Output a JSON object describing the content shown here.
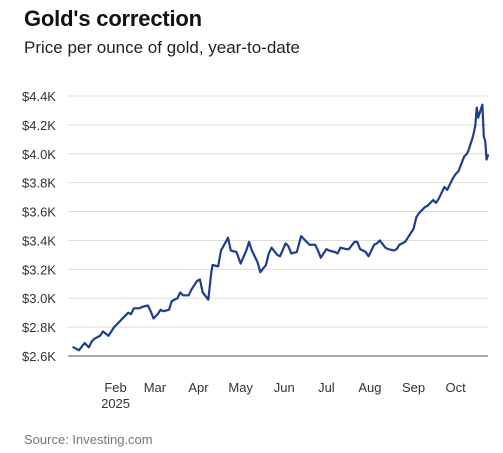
{
  "chart_data": {
    "type": "line",
    "title": "Gold's correction",
    "subtitle": "Price per ounce of gold, year-to-date",
    "source": "Source: Investing.com",
    "xlabel": "",
    "ylabel": "",
    "ylim": [
      2600,
      4400
    ],
    "yticks": [
      {
        "value": 2600,
        "label": "$2.6K"
      },
      {
        "value": 2800,
        "label": "$2.8K"
      },
      {
        "value": 3000,
        "label": "$3.0K"
      },
      {
        "value": 3200,
        "label": "$3.2K"
      },
      {
        "value": 3400,
        "label": "$3.4K"
      },
      {
        "value": 3600,
        "label": "$3.6K"
      },
      {
        "value": 3800,
        "label": "$3.8K"
      },
      {
        "value": 4000,
        "label": "$4.0K"
      },
      {
        "value": 4200,
        "label": "$4.2K"
      },
      {
        "value": 4400,
        "label": "$4.4K"
      }
    ],
    "xlim": [
      "2025-01-01",
      "2025-10-24"
    ],
    "xticks": [
      {
        "date": "2025-02-01",
        "label": "Feb",
        "sublabel": "2025"
      },
      {
        "date": "2025-03-01",
        "label": "Mar",
        "sublabel": ""
      },
      {
        "date": "2025-04-01",
        "label": "Apr",
        "sublabel": ""
      },
      {
        "date": "2025-05-01",
        "label": "May",
        "sublabel": ""
      },
      {
        "date": "2025-06-01",
        "label": "Jun",
        "sublabel": ""
      },
      {
        "date": "2025-07-01",
        "label": "Jul",
        "sublabel": ""
      },
      {
        "date": "2025-08-01",
        "label": "Aug",
        "sublabel": ""
      },
      {
        "date": "2025-09-01",
        "label": "Sep",
        "sublabel": ""
      },
      {
        "date": "2025-10-01",
        "label": "Oct",
        "sublabel": ""
      }
    ],
    "grid": true,
    "legend": "none",
    "color": "#1f3d8f",
    "series": [
      {
        "points": [
          [
            "2025-01-02",
            2660
          ],
          [
            "2025-01-06",
            2640
          ],
          [
            "2025-01-08",
            2665
          ],
          [
            "2025-01-10",
            2690
          ],
          [
            "2025-01-13",
            2660
          ],
          [
            "2025-01-15",
            2700
          ],
          [
            "2025-01-17",
            2720
          ],
          [
            "2025-01-21",
            2740
          ],
          [
            "2025-01-23",
            2770
          ],
          [
            "2025-01-27",
            2740
          ],
          [
            "2025-01-29",
            2770
          ],
          [
            "2025-01-31",
            2800
          ],
          [
            "2025-02-04",
            2840
          ],
          [
            "2025-02-06",
            2860
          ],
          [
            "2025-02-10",
            2900
          ],
          [
            "2025-02-12",
            2890
          ],
          [
            "2025-02-14",
            2930
          ],
          [
            "2025-02-18",
            2930
          ],
          [
            "2025-02-20",
            2940
          ],
          [
            "2025-02-24",
            2950
          ],
          [
            "2025-02-26",
            2910
          ],
          [
            "2025-02-28",
            2860
          ],
          [
            "2025-03-03",
            2890
          ],
          [
            "2025-03-05",
            2920
          ],
          [
            "2025-03-07",
            2910
          ],
          [
            "2025-03-11",
            2920
          ],
          [
            "2025-03-13",
            2980
          ],
          [
            "2025-03-17",
            3000
          ],
          [
            "2025-03-19",
            3040
          ],
          [
            "2025-03-21",
            3020
          ],
          [
            "2025-03-25",
            3020
          ],
          [
            "2025-03-27",
            3060
          ],
          [
            "2025-03-31",
            3120
          ],
          [
            "2025-04-02",
            3130
          ],
          [
            "2025-04-04",
            3040
          ],
          [
            "2025-04-08",
            2990
          ],
          [
            "2025-04-10",
            3170
          ],
          [
            "2025-04-11",
            3230
          ],
          [
            "2025-04-15",
            3220
          ],
          [
            "2025-04-17",
            3330
          ],
          [
            "2025-04-21",
            3400
          ],
          [
            "2025-04-22",
            3420
          ],
          [
            "2025-04-24",
            3330
          ],
          [
            "2025-04-28",
            3320
          ],
          [
            "2025-05-01",
            3240
          ],
          [
            "2025-05-05",
            3330
          ],
          [
            "2025-05-07",
            3390
          ],
          [
            "2025-05-09",
            3330
          ],
          [
            "2025-05-13",
            3250
          ],
          [
            "2025-05-15",
            3180
          ],
          [
            "2025-05-19",
            3230
          ],
          [
            "2025-05-21",
            3310
          ],
          [
            "2025-05-23",
            3350
          ],
          [
            "2025-05-27",
            3300
          ],
          [
            "2025-05-29",
            3290
          ],
          [
            "2025-06-02",
            3380
          ],
          [
            "2025-06-04",
            3360
          ],
          [
            "2025-06-06",
            3310
          ],
          [
            "2025-06-10",
            3320
          ],
          [
            "2025-06-13",
            3430
          ],
          [
            "2025-06-17",
            3390
          ],
          [
            "2025-06-19",
            3370
          ],
          [
            "2025-06-23",
            3370
          ],
          [
            "2025-06-25",
            3330
          ],
          [
            "2025-06-27",
            3280
          ],
          [
            "2025-07-01",
            3340
          ],
          [
            "2025-07-03",
            3330
          ],
          [
            "2025-07-07",
            3320
          ],
          [
            "2025-07-09",
            3310
          ],
          [
            "2025-07-11",
            3350
          ],
          [
            "2025-07-15",
            3340
          ],
          [
            "2025-07-17",
            3340
          ],
          [
            "2025-07-21",
            3390
          ],
          [
            "2025-07-23",
            3390
          ],
          [
            "2025-07-25",
            3340
          ],
          [
            "2025-07-29",
            3320
          ],
          [
            "2025-07-31",
            3290
          ],
          [
            "2025-08-04",
            3370
          ],
          [
            "2025-08-06",
            3380
          ],
          [
            "2025-08-08",
            3400
          ],
          [
            "2025-08-12",
            3350
          ],
          [
            "2025-08-14",
            3340
          ],
          [
            "2025-08-18",
            3330
          ],
          [
            "2025-08-20",
            3340
          ],
          [
            "2025-08-22",
            3370
          ],
          [
            "2025-08-26",
            3390
          ],
          [
            "2025-08-28",
            3420
          ],
          [
            "2025-09-01",
            3480
          ],
          [
            "2025-09-03",
            3560
          ],
          [
            "2025-09-05",
            3590
          ],
          [
            "2025-09-09",
            3630
          ],
          [
            "2025-09-11",
            3640
          ],
          [
            "2025-09-15",
            3680
          ],
          [
            "2025-09-17",
            3660
          ],
          [
            "2025-09-19",
            3690
          ],
          [
            "2025-09-23",
            3770
          ],
          [
            "2025-09-25",
            3750
          ],
          [
            "2025-09-29",
            3830
          ],
          [
            "2025-10-01",
            3860
          ],
          [
            "2025-10-03",
            3880
          ],
          [
            "2025-10-07",
            3980
          ],
          [
            "2025-10-09",
            4000
          ],
          [
            "2025-10-10",
            4020
          ],
          [
            "2025-10-13",
            4110
          ],
          [
            "2025-10-14",
            4150
          ],
          [
            "2025-10-15",
            4200
          ],
          [
            "2025-10-16",
            4320
          ],
          [
            "2025-10-17",
            4250
          ],
          [
            "2025-10-20",
            4340
          ],
          [
            "2025-10-21",
            4120
          ],
          [
            "2025-10-22",
            4090
          ],
          [
            "2025-10-23",
            3960
          ],
          [
            "2025-10-24",
            3990
          ]
        ]
      }
    ]
  }
}
